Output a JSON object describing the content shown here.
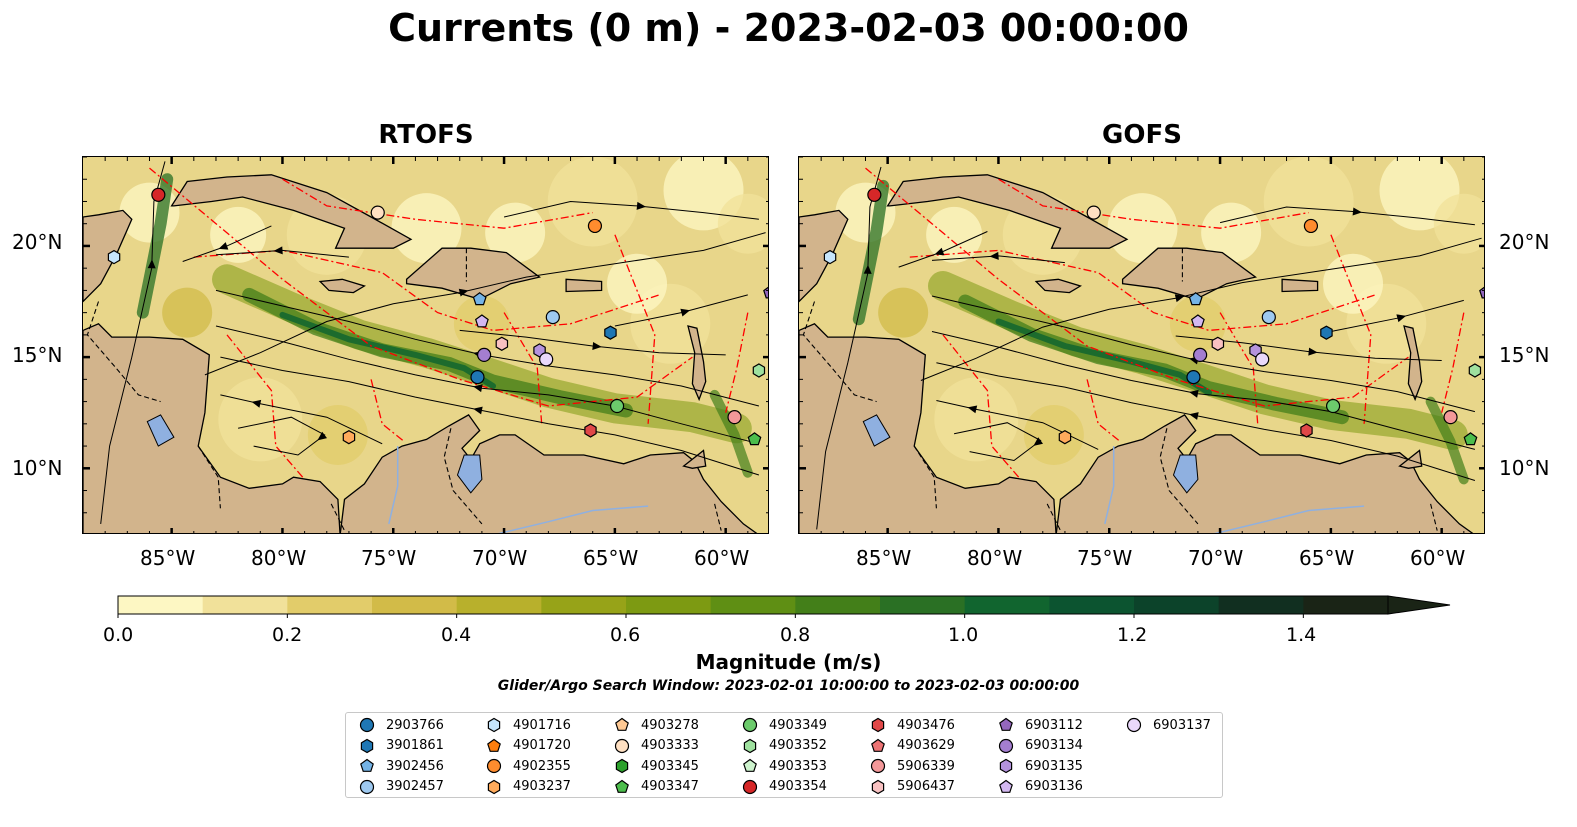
{
  "title": "Currents (0 m) - 2023-02-03 00:00:00",
  "panels": [
    {
      "title": "RTOFS"
    },
    {
      "title": "GOFS"
    }
  ],
  "axes": {
    "x_ticks": [
      "85°W",
      "80°W",
      "75°W",
      "70°W",
      "65°W",
      "60°W"
    ],
    "y_ticks": [
      "20°N",
      "15°N",
      "10°N"
    ],
    "lon_range": [
      -89,
      -58
    ],
    "lat_range": [
      7,
      24
    ]
  },
  "colorbar": {
    "label": "Magnitude (m/s)",
    "ticks": [
      "0.0",
      "0.2",
      "0.4",
      "0.6",
      "0.8",
      "1.0",
      "1.2",
      "1.4"
    ],
    "range": [
      0,
      1.5
    ],
    "extend": "max",
    "colors": [
      "#fdf7c3",
      "#f1e19a",
      "#e2cc6a",
      "#d2bb48",
      "#b8b02c",
      "#97a318",
      "#7d9a12",
      "#5f8f14",
      "#437f19",
      "#2a7024",
      "#11652f",
      "#0c5430",
      "#0c432a",
      "#112f20",
      "#1a2416"
    ]
  },
  "search_window": "Glider/Argo Search Window: 2023-02-01 10:00:00 to 2023-02-03 00:00:00",
  "legend": [
    {
      "id": "2903766",
      "color": "#1f77b4",
      "shape": "circle"
    },
    {
      "id": "3901861",
      "color": "#1f77b4",
      "shape": "hexagon"
    },
    {
      "id": "3902456",
      "color": "#74b3e6",
      "shape": "pentagon"
    },
    {
      "id": "3902457",
      "color": "#9ec9f0",
      "shape": "circle"
    },
    {
      "id": "4901716",
      "color": "#c6e5fb",
      "shape": "hexagon"
    },
    {
      "id": "4901720",
      "color": "#ff7f0e",
      "shape": "pentagon"
    },
    {
      "id": "4902355",
      "color": "#ff8c2e",
      "shape": "circle"
    },
    {
      "id": "4903237",
      "color": "#ffab5c",
      "shape": "hexagon"
    },
    {
      "id": "4903278",
      "color": "#ffc994",
      "shape": "pentagon"
    },
    {
      "id": "4903333",
      "color": "#ffe0c2",
      "shape": "circle"
    },
    {
      "id": "4903345",
      "color": "#2ca02c",
      "shape": "hexagon"
    },
    {
      "id": "4903347",
      "color": "#4cbd4c",
      "shape": "pentagon"
    },
    {
      "id": "4903349",
      "color": "#6ccb6c",
      "shape": "circle"
    },
    {
      "id": "4903352",
      "color": "#9fe19f",
      "shape": "hexagon"
    },
    {
      "id": "4903353",
      "color": "#cdf3cd",
      "shape": "pentagon"
    },
    {
      "id": "4903354",
      "color": "#d62728",
      "shape": "circle"
    },
    {
      "id": "4903476",
      "color": "#e04848",
      "shape": "hexagon"
    },
    {
      "id": "4903629",
      "color": "#ec7374",
      "shape": "pentagon"
    },
    {
      "id": "5906339",
      "color": "#f39899",
      "shape": "circle"
    },
    {
      "id": "5906437",
      "color": "#f8c1c1",
      "shape": "hexagon"
    },
    {
      "id": "6903112",
      "color": "#9467bd",
      "shape": "pentagon"
    },
    {
      "id": "6903134",
      "color": "#a47ed0",
      "shape": "circle"
    },
    {
      "id": "6903135",
      "color": "#b493dd",
      "shape": "hexagon"
    },
    {
      "id": "6903136",
      "color": "#d3b8f0",
      "shape": "pentagon"
    },
    {
      "id": "6903137",
      "color": "#ead8fb",
      "shape": "circle"
    }
  ],
  "markers": [
    {
      "id": "4903354",
      "lon": -85.6,
      "lat": 22.3
    },
    {
      "id": "4901716",
      "lon": -87.6,
      "lat": 19.5
    },
    {
      "id": "4903333",
      "lon": -75.7,
      "lat": 21.5
    },
    {
      "id": "4902355",
      "lon": -65.9,
      "lat": 20.9
    },
    {
      "id": "3901861",
      "lon": -65.2,
      "lat": 16.1
    },
    {
      "id": "3902457",
      "lon": -67.8,
      "lat": 16.8
    },
    {
      "id": "3902456",
      "lon": -71.1,
      "lat": 17.6
    },
    {
      "id": "6903136",
      "lon": -71.0,
      "lat": 16.6
    },
    {
      "id": "5906437",
      "lon": -70.1,
      "lat": 15.6
    },
    {
      "id": "6903134",
      "lon": -70.9,
      "lat": 15.1
    },
    {
      "id": "2903766",
      "lon": -71.2,
      "lat": 14.1
    },
    {
      "id": "6903135",
      "lon": -68.4,
      "lat": 15.3
    },
    {
      "id": "6903137",
      "lon": -68.1,
      "lat": 14.9
    },
    {
      "id": "6903112",
      "lon": -58.0,
      "lat": 17.9
    },
    {
      "id": "4903352",
      "lon": -58.5,
      "lat": 14.4
    },
    {
      "id": "4903349",
      "lon": -64.9,
      "lat": 12.8
    },
    {
      "id": "5906339",
      "lon": -59.6,
      "lat": 12.3
    },
    {
      "id": "4903476",
      "lon": -66.1,
      "lat": 11.7
    },
    {
      "id": "4903237",
      "lon": -77.0,
      "lat": 11.4
    },
    {
      "id": "4903347",
      "lon": -58.7,
      "lat": 11.3
    }
  ]
}
